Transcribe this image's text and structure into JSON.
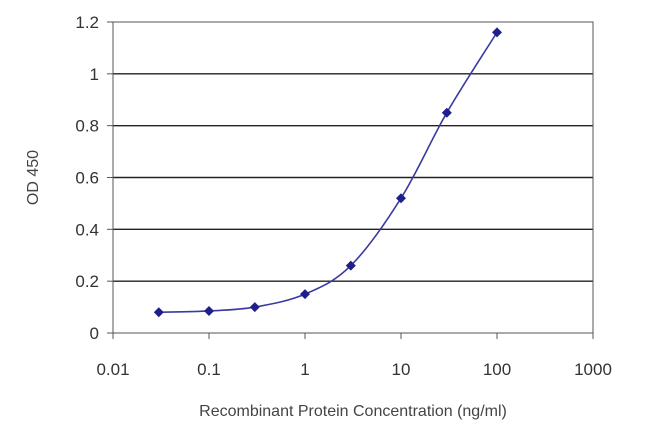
{
  "chart_data": {
    "type": "scatter",
    "xlabel": "Recombinant Protein Concentration (ng/ml)",
    "ylabel": "OD 450",
    "x_scale": "log",
    "xlim": [
      0.01,
      1000
    ],
    "ylim": [
      0,
      1.2
    ],
    "x_ticks": [
      "0.01",
      "0.1",
      "1",
      "10",
      "100",
      "1000"
    ],
    "y_ticks": [
      "0",
      "0.2",
      "0.4",
      "0.6",
      "0.8",
      "1",
      "1.2"
    ],
    "grid": "horizontal",
    "legend": "none",
    "series": [
      {
        "x": [
          0.03,
          0.1,
          0.3,
          1,
          3,
          10,
          30,
          100
        ],
        "y": [
          0.08,
          0.085,
          0.1,
          0.15,
          0.26,
          0.52,
          0.85,
          1.16
        ],
        "fit_line": true
      }
    ],
    "colors": {
      "marker": "#1f1f8c",
      "line": "#3a3aa0",
      "grid": "#222222",
      "frame": "#555555"
    }
  }
}
